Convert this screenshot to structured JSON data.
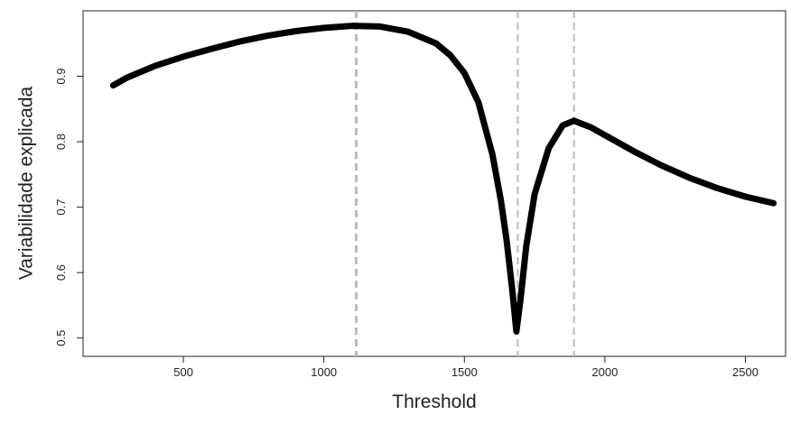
{
  "chart_data": {
    "type": "line",
    "xlabel": "Threshold",
    "ylabel": "Variabilidade explicada",
    "x": [
      250,
      300,
      400,
      500,
      600,
      700,
      800,
      900,
      1000,
      1100,
      1200,
      1300,
      1400,
      1450,
      1500,
      1550,
      1600,
      1630,
      1650,
      1670,
      1685,
      1700,
      1720,
      1750,
      1800,
      1850,
      1890,
      1950,
      2000,
      2100,
      2200,
      2300,
      2400,
      2500,
      2600
    ],
    "series": [
      {
        "color": "#000000",
        "values": [
          0.886,
          0.898,
          0.916,
          0.93,
          0.942,
          0.953,
          0.962,
          0.969,
          0.974,
          0.977,
          0.976,
          0.968,
          0.95,
          0.932,
          0.905,
          0.86,
          0.78,
          0.71,
          0.65,
          0.575,
          0.51,
          0.56,
          0.64,
          0.72,
          0.79,
          0.825,
          0.832,
          0.822,
          0.81,
          0.786,
          0.764,
          0.745,
          0.729,
          0.716,
          0.706
        ]
      }
    ],
    "vlines": [
      1115,
      1690,
      1890
    ],
    "vline_color": "#bbbbbb",
    "xlim": [
      143,
      2643
    ],
    "ylim": [
      0.472,
      1.0
    ],
    "xticks": [
      500,
      1000,
      1500,
      2000,
      2500
    ],
    "yticks": [
      0.5,
      0.6,
      0.7,
      0.8,
      0.9
    ]
  }
}
